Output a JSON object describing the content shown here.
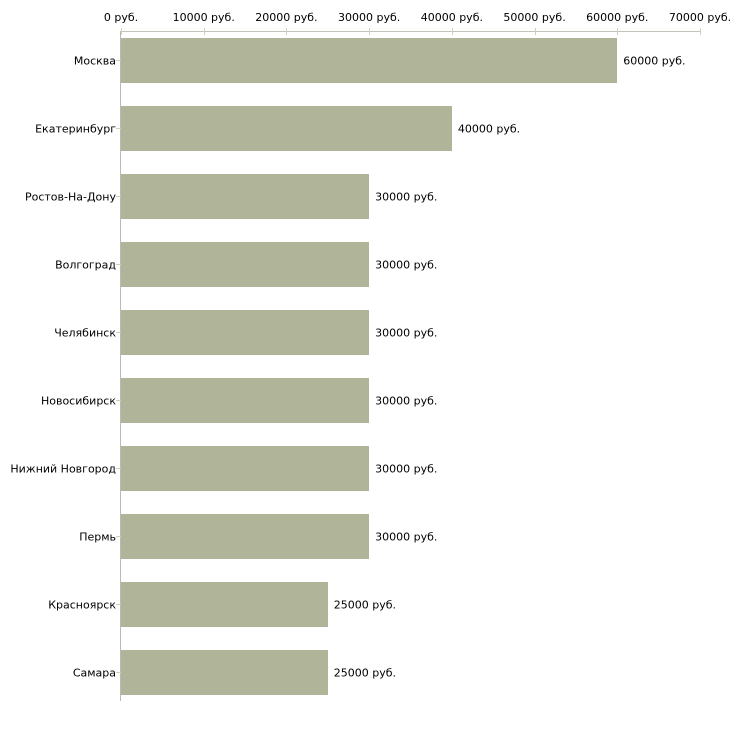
{
  "chart_data": {
    "type": "bar",
    "orientation": "horizontal",
    "title": "",
    "xlabel": "",
    "ylabel": "",
    "unit": "руб.",
    "categories": [
      "Москва",
      "Екатеринбург",
      "Ростов-На-Дону",
      "Волгоград",
      "Челябинск",
      "Новосибирск",
      "Нижний Новгород",
      "Пермь",
      "Красноярск",
      "Самара"
    ],
    "values": [
      60000,
      40000,
      30000,
      30000,
      30000,
      30000,
      30000,
      30000,
      25000,
      25000
    ],
    "value_labels": [
      "60000 руб.",
      "40000 руб.",
      "30000 руб.",
      "30000 руб.",
      "30000 руб.",
      "30000 руб.",
      "30000 руб.",
      "30000 руб.",
      "25000 руб.",
      "25000 руб."
    ],
    "x_axis": {
      "position": "top",
      "range": [
        0,
        70000
      ],
      "ticks": [
        0,
        10000,
        20000,
        30000,
        40000,
        50000,
        60000,
        70000
      ],
      "tick_labels": [
        "0 руб.",
        "10000 руб.",
        "20000 руб.",
        "30000 руб.",
        "40000 руб.",
        "50000 руб.",
        "60000 руб.",
        "70000 руб."
      ]
    },
    "grid": false,
    "legend": "none",
    "colors": {
      "bar_fill": "#b0b59a",
      "x_axis_line": "#c2c3bb",
      "y_axis_line": "#b9bab4",
      "tick_mark": "#ced1b8",
      "text": "#000000",
      "background": "#ffffff"
    }
  }
}
